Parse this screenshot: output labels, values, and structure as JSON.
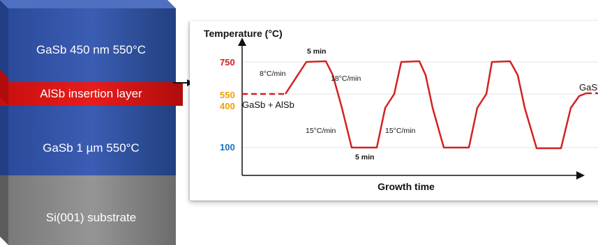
{
  "stack": {
    "layers": [
      {
        "label": "GaSb 450 nm 550°C",
        "color": "#3353a6"
      },
      {
        "label": "AlSb insertion layer",
        "color": "#e01414"
      },
      {
        "label": "GaSb 1 µm 550°C",
        "color": "#3353a6"
      },
      {
        "label": "Si(001) substrate",
        "color": "#8a8a8a"
      }
    ]
  },
  "plot": {
    "y_axis_title": "Temperature (°C)",
    "x_axis_title": "Growth time",
    "temperature_ticks": [
      {
        "label": "750",
        "value": 750,
        "color": "#d02020"
      },
      {
        "label": "550",
        "value": 550,
        "color": "#f0a000"
      },
      {
        "label": "400",
        "value": 400,
        "color": "#f0a000"
      },
      {
        "label": "100",
        "value": 100,
        "color": "#1b6fc2"
      }
    ],
    "annotations": {
      "hold_top": "5 min",
      "hold_bottom": "5 min",
      "ramp_up_rate": "8°C/min",
      "ramp_down_rate_top": "18°C/min",
      "ramp_down_rate_mid": "15°C/min",
      "ramp_up_rate_mid": "15°C/min",
      "start_layer": "GaSb + AlSb",
      "end_layer": "GaSb"
    },
    "line_color": "#d42020"
  }
}
